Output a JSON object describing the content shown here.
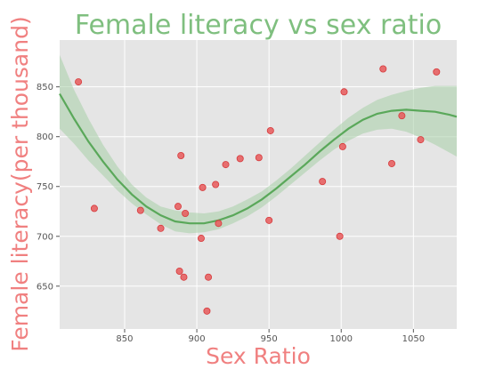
{
  "colors": {
    "title": "#7fbf7f",
    "axis_label": "#f08080",
    "plot_bg": "#e5e5e5",
    "grid": "#ffffff",
    "point_fill": "#e8595b",
    "point_edge": "#d63a3c",
    "line": "#5aa85a",
    "band": "#a7cfa7"
  },
  "chart_data": {
    "type": "scatter",
    "title": "Female literacy vs sex ratio",
    "xlabel": "Sex Ratio",
    "ylabel": "Female literacy(per thousand)",
    "xlim": [
      805,
      1080
    ],
    "ylim": [
      607,
      897
    ],
    "xticks": [
      850,
      900,
      950,
      1000,
      1050
    ],
    "yticks": [
      650,
      700,
      750,
      800,
      850
    ],
    "grid": true,
    "points": [
      {
        "x": 818,
        "y": 855
      },
      {
        "x": 829,
        "y": 728
      },
      {
        "x": 861,
        "y": 726
      },
      {
        "x": 875,
        "y": 708
      },
      {
        "x": 887,
        "y": 730
      },
      {
        "x": 888,
        "y": 665
      },
      {
        "x": 889,
        "y": 781
      },
      {
        "x": 891,
        "y": 659
      },
      {
        "x": 892,
        "y": 723
      },
      {
        "x": 903,
        "y": 698
      },
      {
        "x": 904,
        "y": 749
      },
      {
        "x": 907,
        "y": 625
      },
      {
        "x": 908,
        "y": 659
      },
      {
        "x": 913,
        "y": 752
      },
      {
        "x": 915,
        "y": 713
      },
      {
        "x": 920,
        "y": 772
      },
      {
        "x": 930,
        "y": 778
      },
      {
        "x": 943,
        "y": 779
      },
      {
        "x": 950,
        "y": 716
      },
      {
        "x": 951,
        "y": 806
      },
      {
        "x": 987,
        "y": 755
      },
      {
        "x": 999,
        "y": 700
      },
      {
        "x": 1001,
        "y": 790
      },
      {
        "x": 1002,
        "y": 845
      },
      {
        "x": 1029,
        "y": 868
      },
      {
        "x": 1035,
        "y": 773
      },
      {
        "x": 1042,
        "y": 821
      },
      {
        "x": 1055,
        "y": 797
      },
      {
        "x": 1066,
        "y": 865
      }
    ],
    "fit_line": {
      "x": [
        805,
        815,
        825,
        835,
        845,
        855,
        865,
        875,
        885,
        895,
        905,
        915,
        925,
        935,
        945,
        955,
        965,
        975,
        985,
        995,
        1005,
        1015,
        1025,
        1035,
        1045,
        1055,
        1065,
        1075,
        1080
      ],
      "y": [
        843,
        818,
        795,
        775,
        757,
        742,
        730,
        721,
        715,
        713,
        713,
        716,
        721,
        728,
        737,
        748,
        760,
        772,
        785,
        797,
        808,
        817,
        823,
        826,
        827,
        826,
        825,
        822,
        820
      ]
    },
    "ci_band": {
      "x": [
        805,
        815,
        825,
        835,
        845,
        855,
        865,
        875,
        885,
        895,
        905,
        915,
        925,
        935,
        945,
        955,
        965,
        975,
        985,
        995,
        1005,
        1015,
        1025,
        1035,
        1045,
        1055,
        1065,
        1075,
        1080
      ],
      "lower": [
        808,
        793,
        776,
        761,
        746,
        733,
        722,
        712,
        705,
        703,
        704,
        707,
        713,
        720,
        729,
        740,
        752,
        764,
        776,
        787,
        796,
        803,
        807,
        808,
        805,
        799,
        792,
        784,
        780
      ],
      "upper": [
        882,
        847,
        818,
        792,
        770,
        752,
        739,
        730,
        726,
        724,
        723,
        725,
        730,
        737,
        745,
        756,
        768,
        781,
        794,
        807,
        819,
        829,
        837,
        842,
        846,
        849,
        851,
        851,
        851
      ]
    }
  }
}
